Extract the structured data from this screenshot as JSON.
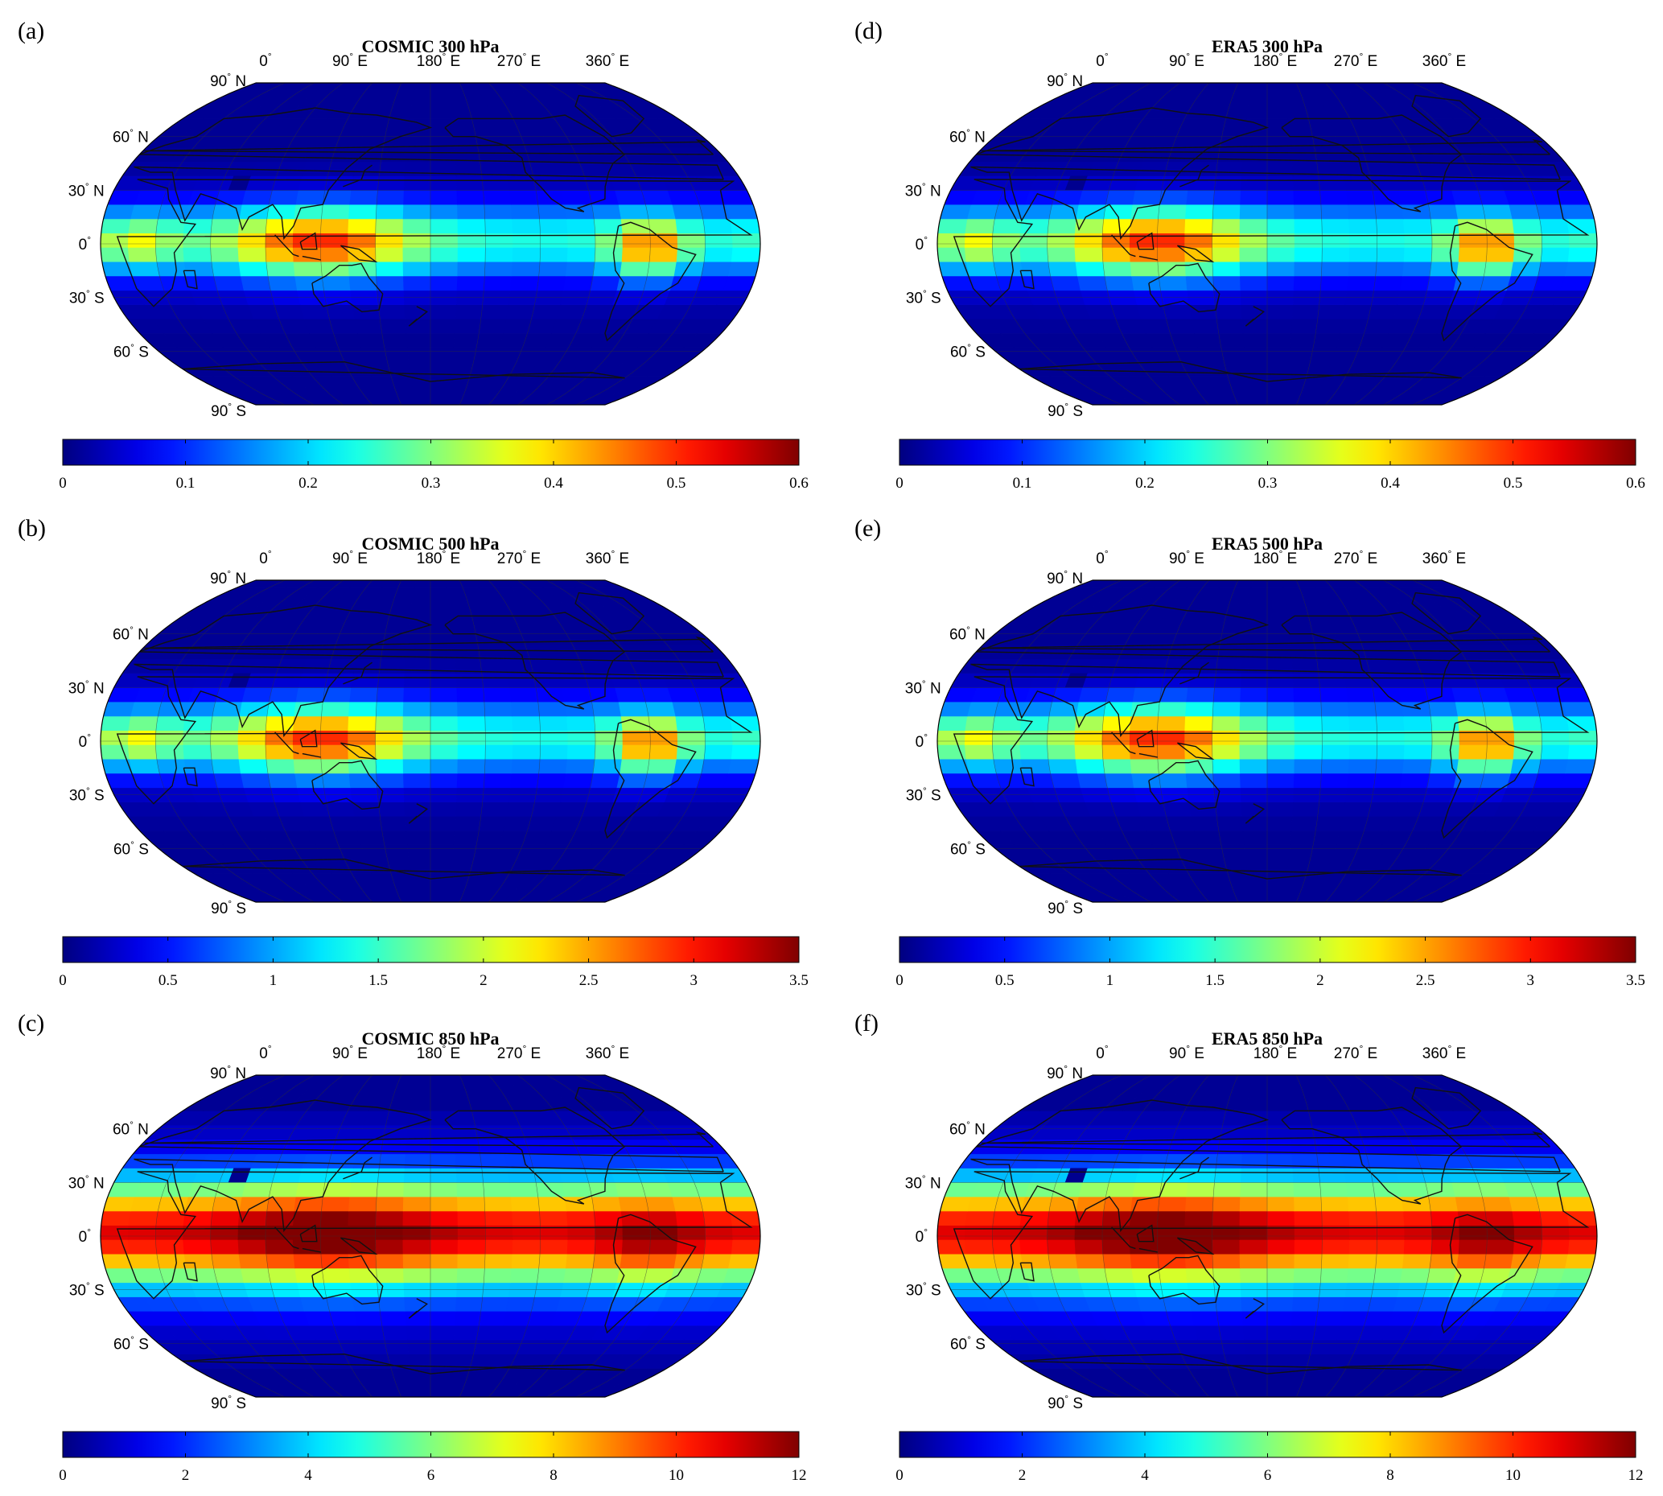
{
  "figure": {
    "colormap": "jet",
    "panels": [
      {
        "letter": "(a)",
        "title": "COSMIC 300 hPa",
        "level": "300",
        "source": "COSMIC",
        "colorbar": {
          "min": 0,
          "max": 0.6,
          "ticks": [
            "0",
            "0.1",
            "0.2",
            "0.3",
            "0.4",
            "0.5",
            "0.6"
          ]
        }
      },
      {
        "letter": "(b)",
        "title": "COSMIC 500 hPa",
        "level": "500",
        "source": "COSMIC",
        "colorbar": {
          "min": 0,
          "max": 3.5,
          "ticks": [
            "0",
            "0.5",
            "1",
            "1.5",
            "2",
            "2.5",
            "3",
            "3.5"
          ]
        }
      },
      {
        "letter": "(c)",
        "title": "COSMIC 850 hPa",
        "level": "850",
        "source": "COSMIC",
        "colorbar": {
          "min": 0,
          "max": 12,
          "ticks": [
            "0",
            "2",
            "4",
            "6",
            "8",
            "10",
            "12"
          ]
        }
      },
      {
        "letter": "(d)",
        "title": "ERA5 300 hPa",
        "level": "300",
        "source": "ERA5",
        "colorbar": {
          "min": 0,
          "max": 0.6,
          "ticks": [
            "0",
            "0.1",
            "0.2",
            "0.3",
            "0.4",
            "0.5",
            "0.6"
          ]
        }
      },
      {
        "letter": "(e)",
        "title": "ERA5 500 hPa",
        "level": "500",
        "source": "ERA5",
        "colorbar": {
          "min": 0,
          "max": 3.5,
          "ticks": [
            "0",
            "0.5",
            "1",
            "1.5",
            "2",
            "2.5",
            "3",
            "3.5"
          ]
        }
      },
      {
        "letter": "(f)",
        "title": "ERA5 850 hPa",
        "level": "850",
        "source": "ERA5",
        "colorbar": {
          "min": 0,
          "max": 12,
          "ticks": [
            "0",
            "2",
            "4",
            "6",
            "8",
            "10",
            "12"
          ]
        }
      }
    ],
    "lon_labels": [
      {
        "num": "0",
        "suffix": ""
      },
      {
        "num": "90",
        "suffix": "E"
      },
      {
        "num": "180",
        "suffix": "E"
      },
      {
        "num": "270",
        "suffix": "E"
      },
      {
        "num": "360",
        "suffix": "E"
      }
    ],
    "lat_labels": [
      {
        "num": "90",
        "suffix": "N"
      },
      {
        "num": "60",
        "suffix": "N"
      },
      {
        "num": "30",
        "suffix": "N"
      },
      {
        "num": "0",
        "suffix": ""
      },
      {
        "num": "30",
        "suffix": "S"
      },
      {
        "num": "60",
        "suffix": "S"
      },
      {
        "num": "90",
        "suffix": "S"
      }
    ]
  }
}
